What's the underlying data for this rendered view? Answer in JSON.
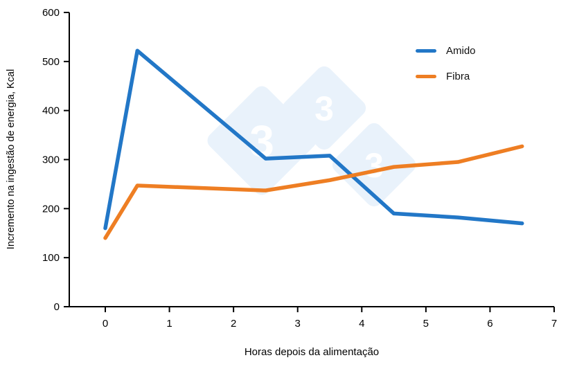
{
  "chart_data": {
    "type": "line",
    "title": "",
    "xlabel": "Horas depois da alimentação",
    "ylabel": "Incremento na ingestão de energia, Kcal",
    "xlim": [
      0,
      7
    ],
    "ylim": [
      0,
      600
    ],
    "x_ticks": [
      0,
      1,
      2,
      3,
      4,
      5,
      6,
      7
    ],
    "y_ticks": [
      0,
      100,
      200,
      300,
      400,
      500,
      600
    ],
    "grid": false,
    "legend_position": "top-right",
    "series": [
      {
        "name": "Amido",
        "color": "#2277c7",
        "x": [
          0,
          0.5,
          2.5,
          3.5,
          4.5,
          5.5,
          6.5
        ],
        "values": [
          160,
          522,
          302,
          308,
          190,
          182,
          170
        ]
      },
      {
        "name": "Fibra",
        "color": "#ee7e23",
        "x": [
          0,
          0.5,
          2.5,
          3.5,
          4.5,
          5.5,
          6.5
        ],
        "values": [
          140,
          247,
          237,
          258,
          285,
          295,
          327
        ]
      }
    ]
  },
  "watermark": {
    "glyph": "3",
    "fill": "#e9f2fb",
    "glyph_color": "#ffffff"
  }
}
